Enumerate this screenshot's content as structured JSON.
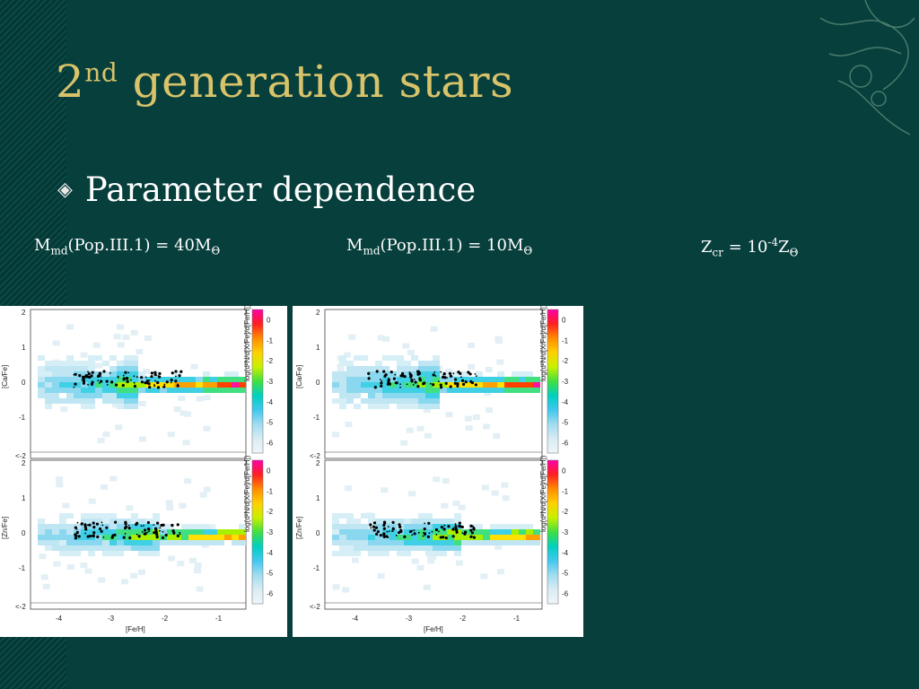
{
  "slide": {
    "title": "2",
    "title_sup": "nd",
    "title_rest": " generation stars",
    "bullet": "Parameter dependence"
  },
  "captions": [
    {
      "pre": "M",
      "sub": "md",
      "post": "(Pop.III.1) = 40M",
      "sym": "Θ"
    },
    {
      "pre": "M",
      "sub": "md",
      "post": "(Pop.III.1) = 10M",
      "sym": "Θ"
    },
    {
      "pre": "Z",
      "sub": "cr",
      "post": " = 10",
      "sup": "-4",
      "tail": "Z",
      "sym": "Θ"
    }
  ],
  "figure": {
    "top_ylabel": "[Ca/Fe]",
    "bottom_ylabel": "[Zn/Fe]",
    "xlabel": "[Fe/H]",
    "x_ticks": [
      "-4",
      "-3",
      "-2",
      "-1"
    ],
    "y_ticks": [
      "2",
      "1",
      "0",
      "-1",
      "<-2"
    ],
    "cb_ticks": [
      "0",
      "-1",
      "-2",
      "-3",
      "-4",
      "-5",
      "-6"
    ],
    "cb_label": "log(d²N/d[X/Fe]/d[Fe/H])"
  },
  "chart_data": {
    "type": "heatmap",
    "panels": [
      {
        "name": "40 top",
        "ylabel": "[Ca/Fe]",
        "xlim": [
          -4.5,
          -0.5
        ],
        "ylim": [
          -2,
          2
        ],
        "cb_range": [
          -6.5,
          0.5
        ]
      },
      {
        "name": "40 bottom",
        "ylabel": "[Zn/Fe]",
        "xlim": [
          -4.5,
          -0.5
        ],
        "ylim": [
          -2,
          2
        ],
        "cb_range": [
          -6.5,
          0.5
        ]
      },
      {
        "name": "10 top",
        "ylabel": "[Ca/Fe]",
        "xlim": [
          -4.5,
          -0.5
        ],
        "ylim": [
          -2,
          2
        ],
        "cb_range": [
          -6.5,
          0.5
        ]
      },
      {
        "name": "10 bottom",
        "ylabel": "[Zn/Fe]",
        "xlim": [
          -4.5,
          -0.5
        ],
        "ylim": [
          -2,
          2
        ],
        "cb_range": [
          -6.5,
          0.5
        ]
      }
    ]
  },
  "colors": {
    "title": "#d8c36a",
    "background": "#063f3c",
    "text": "#ffffff"
  }
}
